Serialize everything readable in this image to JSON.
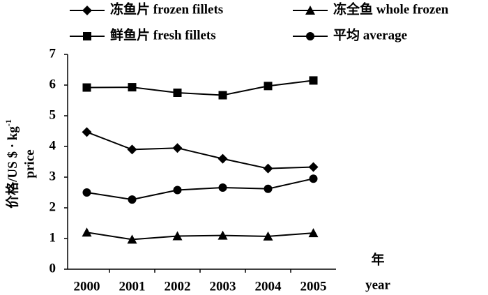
{
  "chart_data": {
    "type": "line",
    "y_label": "价格/US $ · kg",
    "y_label_sup": "-1",
    "y_label_en": "price",
    "x_label": "年",
    "x_label_en": "year",
    "categories": [
      "2000",
      "2001",
      "2002",
      "2003",
      "2004",
      "2005"
    ],
    "series": [
      {
        "name": "冻鱼片 frozen fillets",
        "color": "#000000",
        "marker": "diamond",
        "values": [
          4.47,
          3.9,
          3.95,
          3.6,
          3.28,
          3.33
        ]
      },
      {
        "name": "冻全鱼 whole frozen",
        "color": "#000000",
        "marker": "triangle",
        "values": [
          1.2,
          0.97,
          1.08,
          1.1,
          1.07,
          1.18
        ]
      },
      {
        "name": "鲜鱼片 fresh fillets",
        "color": "#000000",
        "marker": "square",
        "values": [
          5.92,
          5.93,
          5.75,
          5.67,
          5.97,
          6.15
        ]
      },
      {
        "name": "平均 average",
        "color": "#000000",
        "marker": "circle",
        "values": [
          2.5,
          2.27,
          2.58,
          2.66,
          2.62,
          2.95
        ]
      }
    ],
    "ylim": [
      0,
      7
    ],
    "yticks": [
      0,
      1,
      2,
      3,
      4,
      5,
      6,
      7
    ],
    "grid": false
  }
}
